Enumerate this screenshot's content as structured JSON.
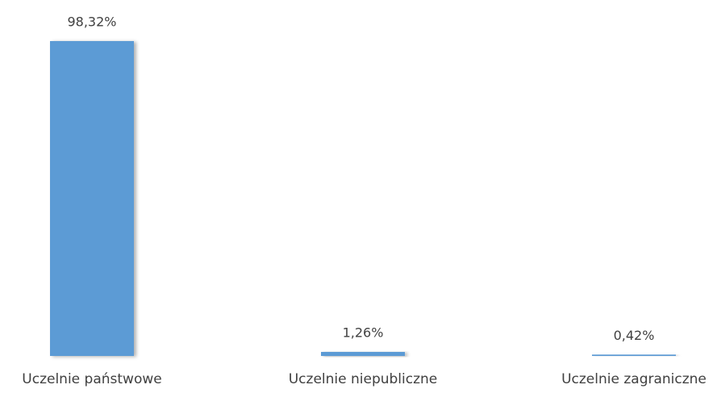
{
  "chart_data": {
    "type": "bar",
    "categories": [
      "Uczelnie państwowe",
      "Uczelnie niepubliczne",
      "Uczelnie zagraniczne"
    ],
    "values": [
      98.32,
      1.26,
      0.42
    ],
    "value_labels": [
      "98,32%",
      "1,26%",
      "0,42%"
    ],
    "color": "#5b9bd5"
  }
}
